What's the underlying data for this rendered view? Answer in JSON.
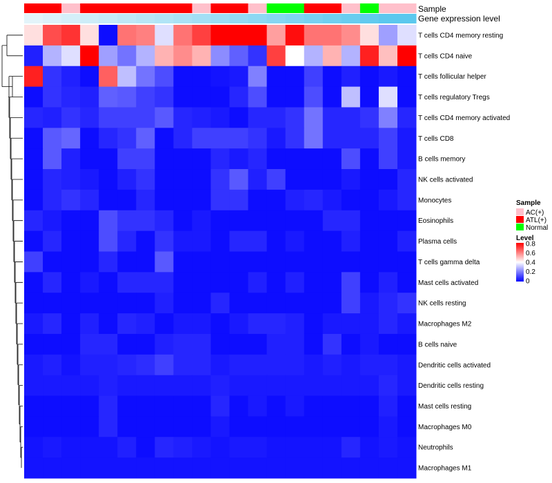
{
  "chart_data": {
    "type": "heatmap",
    "annotation_labels": {
      "sample": "Sample",
      "gene_expression": "Gene expression level"
    },
    "rows": [
      "T cells CD4 memory resting",
      "T cells CD4 naive",
      "T cells follicular helper",
      "T cells regulatory  Tregs",
      "T cells CD4 memory activated",
      "T cells CD8",
      "B cells memory",
      "NK cells activated",
      "Monocytes",
      "Eosinophils",
      "Plasma cells",
      "T cells gamma delta",
      "Mast cells activated",
      "NK cells resting",
      "Macrophages M2",
      "B cells naive",
      "Dendritic cells activated",
      "Dendritic cells resting",
      "Mast cells resting",
      "Macrophages M0",
      "Neutrophils",
      "Macrophages M1"
    ],
    "sample_groups": [
      "ATL(+)",
      "ATL(+)",
      "AC(+)",
      "ATL(+)",
      "ATL(+)",
      "ATL(+)",
      "ATL(+)",
      "ATL(+)",
      "ATL(+)",
      "AC(+)",
      "ATL(+)",
      "ATL(+)",
      "AC(+)",
      "Normal",
      "Normal",
      "ATL(+)",
      "ATL(+)",
      "AC(+)",
      "Normal",
      "AC(+)",
      "AC(+)"
    ],
    "gene_expression_level": [
      0.05,
      0.1,
      0.15,
      0.2,
      0.25,
      0.3,
      0.35,
      0.4,
      0.45,
      0.5,
      0.55,
      0.6,
      0.65,
      0.7,
      0.75,
      0.8,
      0.85,
      0.9,
      0.95,
      1.0,
      1.0
    ],
    "values": [
      [
        0.45,
        0.68,
        0.72,
        0.45,
        0.02,
        0.62,
        0.6,
        0.35,
        0.62,
        0.7,
        0.8,
        0.8,
        0.8,
        0.55,
        0.78,
        0.62,
        0.62,
        0.58,
        0.45,
        0.25,
        0.35
      ],
      [
        0.05,
        0.28,
        0.35,
        0.8,
        0.25,
        0.18,
        0.28,
        0.52,
        0.58,
        0.52,
        0.22,
        0.15,
        0.08,
        0.7,
        0.4,
        0.28,
        0.52,
        0.28,
        0.75,
        0.5,
        0.8
      ],
      [
        0.75,
        0.08,
        0.05,
        0.02,
        0.65,
        0.3,
        0.18,
        0.12,
        0.02,
        0.02,
        0.03,
        0.04,
        0.2,
        0.02,
        0.02,
        0.1,
        0.02,
        0.05,
        0.02,
        0.04,
        0.02
      ],
      [
        0.02,
        0.08,
        0.06,
        0.05,
        0.15,
        0.14,
        0.1,
        0.08,
        0.02,
        0.02,
        0.02,
        0.06,
        0.12,
        0.02,
        0.02,
        0.12,
        0.02,
        0.3,
        0.02,
        0.35,
        0.02
      ],
      [
        0.06,
        0.05,
        0.08,
        0.06,
        0.1,
        0.1,
        0.1,
        0.14,
        0.06,
        0.05,
        0.04,
        0.02,
        0.06,
        0.06,
        0.08,
        0.18,
        0.06,
        0.06,
        0.08,
        0.2,
        0.06
      ],
      [
        0.02,
        0.14,
        0.16,
        0.02,
        0.06,
        0.08,
        0.15,
        0.02,
        0.06,
        0.1,
        0.1,
        0.1,
        0.08,
        0.04,
        0.08,
        0.18,
        0.06,
        0.06,
        0.06,
        0.1,
        0.04
      ],
      [
        0.02,
        0.14,
        0.05,
        0.02,
        0.02,
        0.1,
        0.1,
        0.02,
        0.02,
        0.02,
        0.06,
        0.04,
        0.06,
        0.02,
        0.02,
        0.02,
        0.02,
        0.12,
        0.02,
        0.1,
        0.04
      ],
      [
        0.02,
        0.06,
        0.05,
        0.04,
        0.02,
        0.05,
        0.08,
        0.02,
        0.02,
        0.02,
        0.08,
        0.14,
        0.05,
        0.1,
        0.02,
        0.02,
        0.02,
        0.04,
        0.02,
        0.02,
        0.06
      ],
      [
        0.02,
        0.06,
        0.08,
        0.06,
        0.02,
        0.02,
        0.06,
        0.02,
        0.02,
        0.02,
        0.08,
        0.08,
        0.02,
        0.02,
        0.05,
        0.06,
        0.04,
        0.02,
        0.02,
        0.04,
        0.06
      ],
      [
        0.06,
        0.04,
        0.02,
        0.02,
        0.12,
        0.08,
        0.08,
        0.06,
        0.02,
        0.04,
        0.02,
        0.02,
        0.02,
        0.02,
        0.02,
        0.02,
        0.06,
        0.06,
        0.02,
        0.02,
        0.02
      ],
      [
        0.02,
        0.06,
        0.02,
        0.02,
        0.12,
        0.06,
        0.02,
        0.08,
        0.04,
        0.04,
        0.02,
        0.06,
        0.06,
        0.02,
        0.04,
        0.02,
        0.02,
        0.05,
        0.02,
        0.02,
        0.05
      ],
      [
        0.1,
        0.02,
        0.02,
        0.02,
        0.06,
        0.02,
        0.02,
        0.14,
        0.02,
        0.02,
        0.02,
        0.02,
        0.02,
        0.02,
        0.02,
        0.02,
        0.02,
        0.02,
        0.02,
        0.02,
        0.02
      ],
      [
        0.02,
        0.06,
        0.02,
        0.04,
        0.02,
        0.06,
        0.06,
        0.06,
        0.02,
        0.02,
        0.02,
        0.02,
        0.05,
        0.02,
        0.05,
        0.02,
        0.02,
        0.1,
        0.02,
        0.05,
        0.02
      ],
      [
        0.02,
        0.02,
        0.02,
        0.02,
        0.02,
        0.02,
        0.02,
        0.05,
        0.02,
        0.02,
        0.06,
        0.02,
        0.02,
        0.02,
        0.02,
        0.02,
        0.02,
        0.1,
        0.04,
        0.06,
        0.08
      ],
      [
        0.04,
        0.06,
        0.02,
        0.05,
        0.02,
        0.06,
        0.05,
        0.02,
        0.04,
        0.04,
        0.02,
        0.04,
        0.06,
        0.06,
        0.05,
        0.02,
        0.04,
        0.04,
        0.04,
        0.06,
        0.04
      ],
      [
        0.02,
        0.02,
        0.02,
        0.06,
        0.06,
        0.02,
        0.02,
        0.05,
        0.06,
        0.06,
        0.02,
        0.02,
        0.02,
        0.05,
        0.05,
        0.02,
        0.08,
        0.02,
        0.04,
        0.02,
        0.02
      ],
      [
        0.04,
        0.05,
        0.03,
        0.05,
        0.05,
        0.06,
        0.07,
        0.1,
        0.06,
        0.06,
        0.04,
        0.05,
        0.05,
        0.05,
        0.05,
        0.04,
        0.05,
        0.04,
        0.05,
        0.05,
        0.04
      ],
      [
        0.04,
        0.04,
        0.04,
        0.04,
        0.05,
        0.04,
        0.04,
        0.04,
        0.04,
        0.04,
        0.05,
        0.04,
        0.04,
        0.04,
        0.04,
        0.04,
        0.04,
        0.04,
        0.04,
        0.06,
        0.04
      ],
      [
        0.02,
        0.02,
        0.02,
        0.02,
        0.06,
        0.02,
        0.02,
        0.02,
        0.02,
        0.02,
        0.06,
        0.02,
        0.04,
        0.02,
        0.04,
        0.02,
        0.02,
        0.02,
        0.02,
        0.05,
        0.02
      ],
      [
        0.02,
        0.02,
        0.02,
        0.02,
        0.06,
        0.02,
        0.02,
        0.02,
        0.02,
        0.02,
        0.04,
        0.02,
        0.02,
        0.02,
        0.02,
        0.02,
        0.02,
        0.02,
        0.02,
        0.04,
        0.02
      ],
      [
        0.03,
        0.04,
        0.03,
        0.03,
        0.03,
        0.05,
        0.02,
        0.06,
        0.05,
        0.04,
        0.03,
        0.04,
        0.04,
        0.03,
        0.03,
        0.03,
        0.03,
        0.06,
        0.03,
        0.04,
        0.03
      ],
      [
        0.03,
        0.03,
        0.03,
        0.03,
        0.03,
        0.03,
        0.03,
        0.03,
        0.03,
        0.03,
        0.03,
        0.03,
        0.03,
        0.03,
        0.03,
        0.03,
        0.03,
        0.03,
        0.03,
        0.03,
        0.03
      ]
    ],
    "legend": {
      "sample_title": "Sample",
      "sample_entries": [
        {
          "label": "AC(+)",
          "color": "#ffc0cb"
        },
        {
          "label": "ATL(+)",
          "color": "#ff0000"
        },
        {
          "label": "Normal",
          "color": "#00ff00"
        }
      ],
      "level_title": "Level",
      "level_ticks": [
        "0.8",
        "0.6",
        "0.4",
        "0.2",
        "0"
      ],
      "level_tick_values": [
        0.8,
        0.6,
        0.4,
        0.2,
        0
      ]
    },
    "color_scale": {
      "low": "#0000ff",
      "mid": "#ffffff",
      "high": "#ff0000",
      "min": 0,
      "max": 0.8
    },
    "gene_expression_colors": {
      "low": "#eaf6fb",
      "high": "#5bc8ee"
    }
  }
}
